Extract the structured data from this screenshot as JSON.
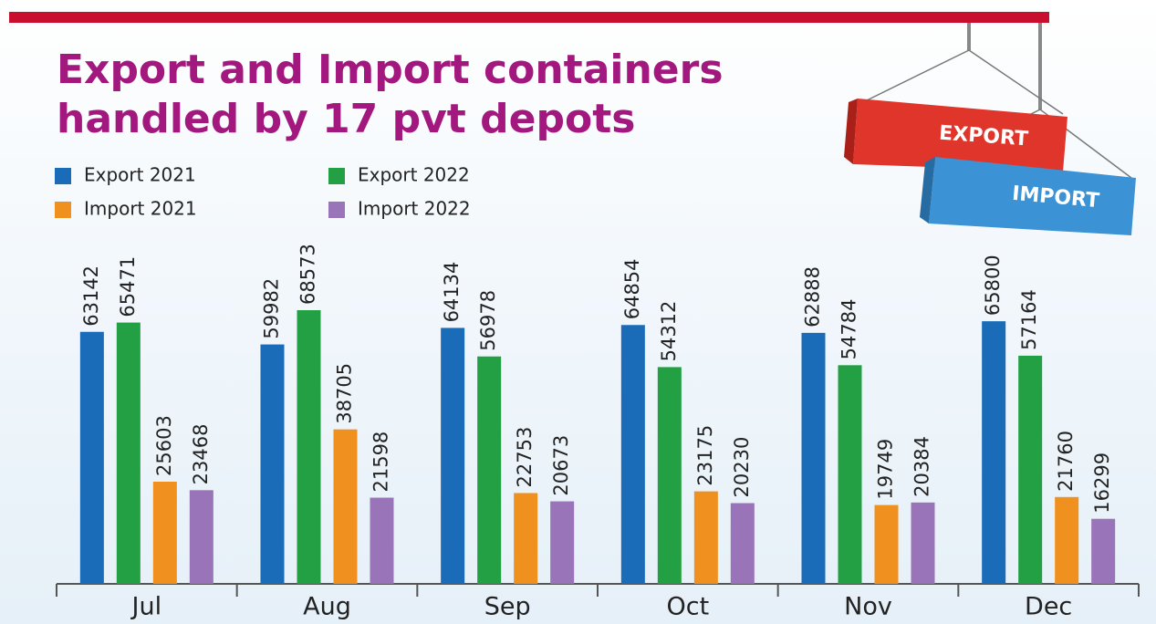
{
  "chart_data": {
    "type": "bar",
    "title": "Export and Import containers handled by 17 pvt depots",
    "categories": [
      "Jul",
      "Aug",
      "Sep",
      "Oct",
      "Nov",
      "Dec"
    ],
    "series": [
      {
        "name": "Export 2021",
        "color": "#1a6bb8",
        "values": [
          63142,
          59982,
          64134,
          64854,
          62888,
          65800
        ]
      },
      {
        "name": "Export 2022",
        "color": "#23a043",
        "values": [
          65471,
          68573,
          56978,
          54312,
          54784,
          57164
        ]
      },
      {
        "name": "Import 2021",
        "color": "#f0901e",
        "values": [
          25603,
          38705,
          22753,
          23175,
          19749,
          21760
        ]
      },
      {
        "name": "Import 2022",
        "color": "#9a74b8",
        "values": [
          23468,
          21598,
          20673,
          20230,
          20384,
          16299
        ]
      }
    ]
  },
  "illustration": {
    "labels": [
      "EXPORT",
      "IMPORT"
    ]
  }
}
